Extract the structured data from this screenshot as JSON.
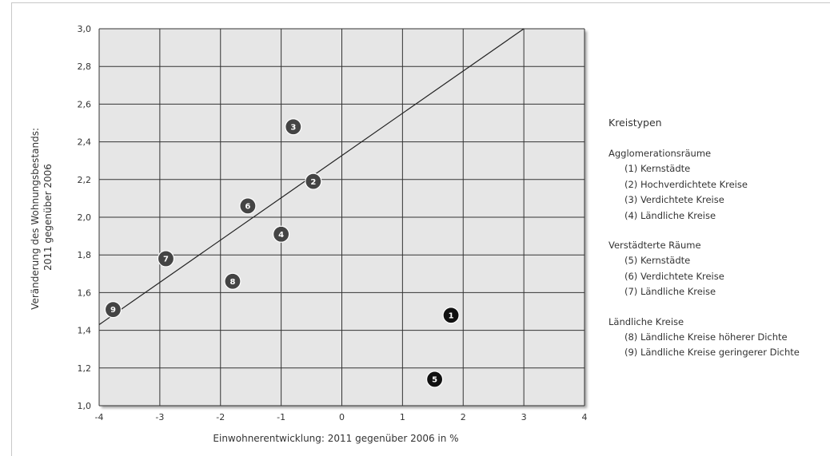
{
  "chart_data": {
    "type": "scatter",
    "title": "",
    "xlabel": "Einwohnerentwicklung: 2011 gegenüber 2006 in %",
    "ylabel_lines": [
      "Veränderung des Wohnungsbestands:",
      "2011 gegenüber 2006"
    ],
    "xlim": [
      -4,
      4
    ],
    "ylim": [
      1.0,
      3.0
    ],
    "x_ticks": [
      -4,
      -3,
      -2,
      -1,
      0,
      1,
      2,
      3,
      4
    ],
    "x_tick_labels": [
      "-4",
      "-3",
      "-2",
      "-1",
      "0",
      "1",
      "2",
      "3",
      "4"
    ],
    "y_ticks": [
      1.0,
      1.2,
      1.4,
      1.6,
      1.8,
      2.0,
      2.2,
      2.4,
      2.6,
      2.8,
      3.0
    ],
    "y_tick_labels": [
      "1,0",
      "1,2",
      "1,4",
      "1,6",
      "1,8",
      "2,0",
      "2,2",
      "2,4",
      "2,6",
      "2,8",
      "3,0"
    ],
    "grid": true,
    "points": [
      {
        "label": "1",
        "x": 1.8,
        "y": 1.48,
        "color": "#111111"
      },
      {
        "label": "2",
        "x": -0.47,
        "y": 2.19,
        "color": "#444444"
      },
      {
        "label": "3",
        "x": -0.8,
        "y": 2.48,
        "color": "#444444"
      },
      {
        "label": "4",
        "x": -1.0,
        "y": 1.91,
        "color": "#444444"
      },
      {
        "label": "5",
        "x": 1.53,
        "y": 1.14,
        "color": "#111111"
      },
      {
        "label": "6",
        "x": -1.55,
        "y": 2.06,
        "color": "#444444"
      },
      {
        "label": "7",
        "x": -2.9,
        "y": 1.78,
        "color": "#444444"
      },
      {
        "label": "8",
        "x": -1.8,
        "y": 1.66,
        "color": "#444444"
      },
      {
        "label": "9",
        "x": -3.77,
        "y": 1.51,
        "color": "#444444"
      }
    ],
    "trend_line": {
      "x": [
        -4,
        3
      ],
      "y": [
        1.43,
        3.0
      ],
      "color": "#222222"
    },
    "colors": {
      "plot_background": "#e6e6e6",
      "grid": "#333333"
    },
    "legend_position": "right"
  },
  "legend": {
    "title": "Kreistypen",
    "groups": [
      {
        "title": "Agglomerationsräume",
        "items": [
          "(1) Kernstädte",
          "(2) Hochverdichtete Kreise",
          "(3) Verdichtete Kreise",
          "(4) Ländliche Kreise"
        ]
      },
      {
        "title": "Verstädterte Räume",
        "items": [
          "(5) Kernstädte",
          "(6) Verdichtete Kreise",
          "(7) Ländliche Kreise"
        ]
      },
      {
        "title": "Ländliche Kreise",
        "items": [
          "(8) Ländliche Kreise höherer Dichte",
          "(9) Ländliche Kreise geringerer Dichte"
        ]
      }
    ]
  }
}
